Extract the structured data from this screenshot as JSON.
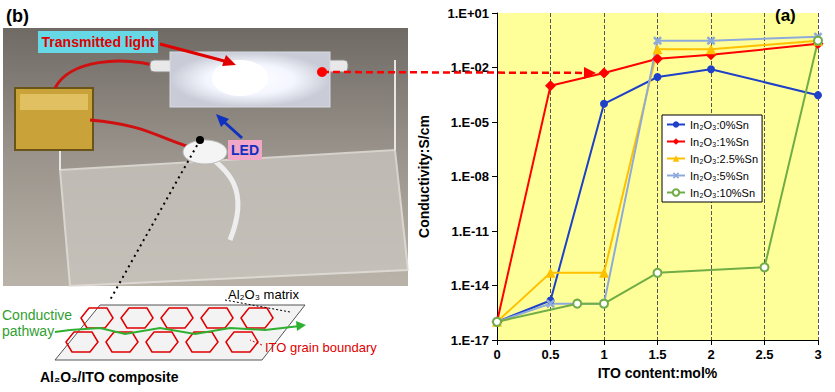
{
  "panel_b": {
    "label": "(b)",
    "transmitted_light": "Transmitted light",
    "led": "LED",
    "matrix": "Al₂O₃ matrix",
    "pathway": "Conductive pathway",
    "grain_boundary": "ITO grain boundary",
    "composite": "Al₂O₃/ITO composite"
  },
  "chart_data": {
    "type": "line",
    "title": "(a)",
    "x_label": "ITO content:mol%",
    "y_label": "Conductivity:S/cm",
    "log": "y",
    "grid": true,
    "legend": "center",
    "xlim": [
      0,
      3
    ],
    "xticks": [
      0,
      0.5,
      1,
      1.5,
      2,
      2.5,
      3
    ],
    "ylim": [
      1e-17,
      10
    ],
    "yticks": [
      {
        "value": 1e-17,
        "label": "1.E-17"
      },
      {
        "value": 1e-14,
        "label": "1.E-14"
      },
      {
        "value": 1e-11,
        "label": "1.E-11"
      },
      {
        "value": 1e-08,
        "label": "1.E-08"
      },
      {
        "value": 1e-05,
        "label": "1.E-05"
      },
      {
        "value": 0.01,
        "label": "1.E-02"
      },
      {
        "value": 10,
        "label": "1.E+01"
      }
    ],
    "series": [
      {
        "name": "In₂O₃:0%Sn",
        "color": "#1f40c8",
        "marker": "circle",
        "x": [
          0,
          0.5,
          1,
          1.5,
          2,
          3
        ],
        "values": [
          1e-16,
          1.5e-15,
          0.0001,
          0.003,
          0.008,
          0.0003
        ]
      },
      {
        "name": "In₂O₃:1%Sn",
        "color": "#ff0000",
        "marker": "diamond",
        "x": [
          0,
          0.5,
          1,
          1.5,
          2,
          3
        ],
        "values": [
          1e-16,
          0.001,
          0.005,
          0.03,
          0.05,
          0.2
        ]
      },
      {
        "name": "In₂O₃:2.5%Sn",
        "color": "#ffc000",
        "marker": "triangle",
        "x": [
          0,
          0.5,
          1,
          1.5,
          2,
          3
        ],
        "values": [
          1e-16,
          5e-14,
          5e-14,
          0.1,
          0.1,
          0.3
        ]
      },
      {
        "name": "In₂O₃:5%Sn",
        "color": "#8eaadb",
        "marker": "x",
        "x": [
          0,
          0.5,
          1,
          1.5,
          2,
          3
        ],
        "values": [
          1e-16,
          1e-15,
          1e-15,
          0.3,
          0.3,
          0.5
        ]
      },
      {
        "name": "In₂O₃:10%Sn",
        "color": "#70ad47",
        "marker": "open_circle",
        "x": [
          0,
          0.75,
          1,
          1.5,
          2.5,
          3
        ],
        "values": [
          1e-16,
          1e-15,
          1e-15,
          5e-14,
          1e-13,
          0.3
        ]
      }
    ]
  }
}
